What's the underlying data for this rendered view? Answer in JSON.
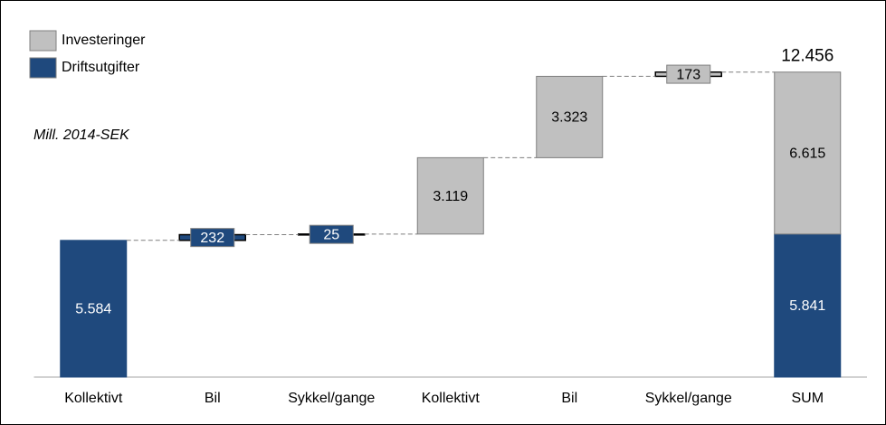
{
  "chart_data": {
    "type": "waterfall",
    "annotation": "Mill. 2014-SEK",
    "categories": [
      "Kollektivt",
      "Bil",
      "Sykkel/gange",
      "Kollektivt",
      "Bil",
      "Sykkel/gange",
      "SUM"
    ],
    "series": [
      {
        "name": "Investeringer",
        "color": "#c0c0c0",
        "text_color": "#000000",
        "values": [
          null,
          null,
          null,
          3119,
          3323,
          173,
          6615
        ],
        "value_labels": [
          null,
          null,
          null,
          "3.119",
          "3.323",
          "173",
          "6.615"
        ]
      },
      {
        "name": "Driftsutgifter",
        "color": "#1f497d",
        "text_color": "#ffffff",
        "values": [
          5584,
          232,
          25,
          null,
          null,
          null,
          5841
        ],
        "value_labels": [
          "5.584",
          "232",
          "25",
          null,
          null,
          null,
          "5.841"
        ]
      }
    ],
    "total": 12456,
    "total_label": "12.456",
    "ylim": [
      0,
      13000
    ]
  }
}
